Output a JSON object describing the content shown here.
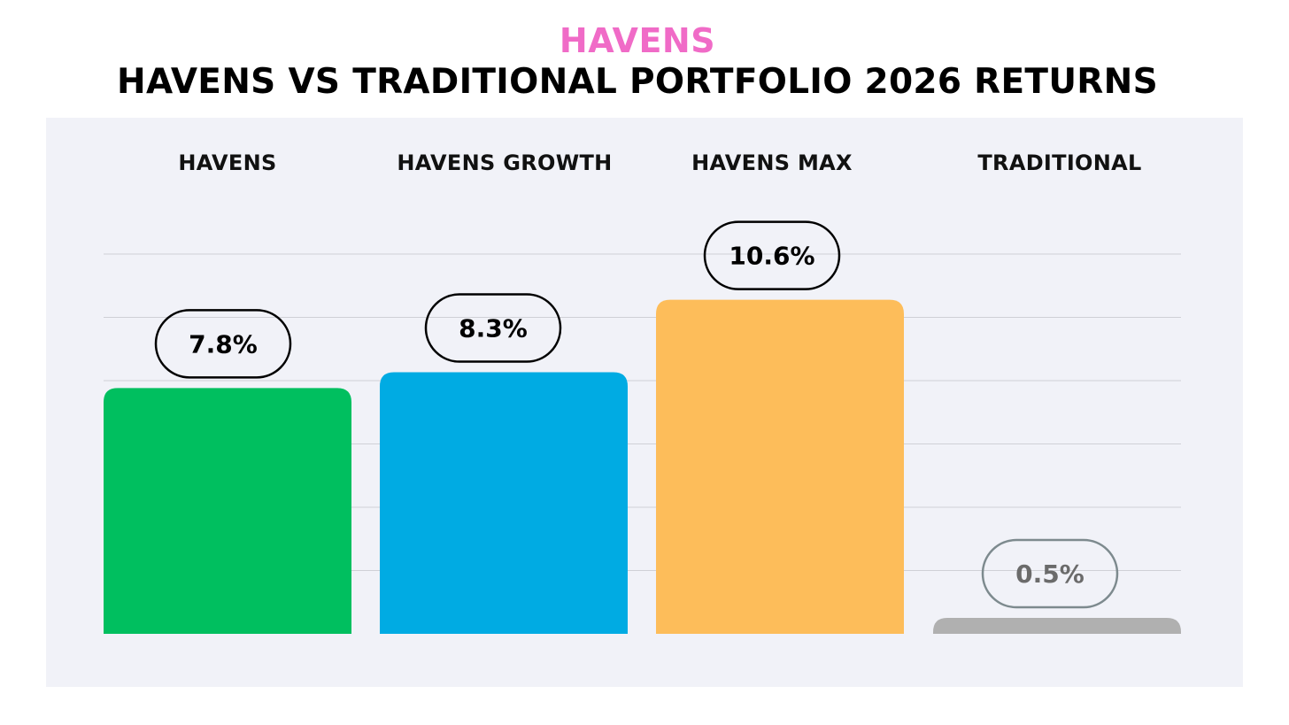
{
  "brand": "HAVENS",
  "title": "HAVENS VS TRADITIONAL PORTFOLIO 2026 RETURNS",
  "chart_data": {
    "type": "bar",
    "title": "HAVENS VS TRADITIONAL PORTFOLIO 2026 RETURNS",
    "categories": [
      "HAVENS",
      "HAVENS GROWTH",
      "HAVENS MAX",
      "TRADITIONAL"
    ],
    "values": [
      7.8,
      8.3,
      10.6,
      0.5
    ],
    "value_labels": [
      "7.8%",
      "8.3%",
      "10.6%",
      "0.5%"
    ],
    "colors": [
      "#00bf5f",
      "#00abe3",
      "#fdbd5a",
      "#b0b0b0"
    ],
    "label_colors": [
      "#000000",
      "#000000",
      "#000000",
      "#6b6b6b"
    ],
    "label_borders": [
      "#000000",
      "#000000",
      "#000000",
      "#7d8a8e"
    ],
    "ylim": [
      0,
      12
    ],
    "grid": true,
    "xlabel": "",
    "ylabel": ""
  }
}
